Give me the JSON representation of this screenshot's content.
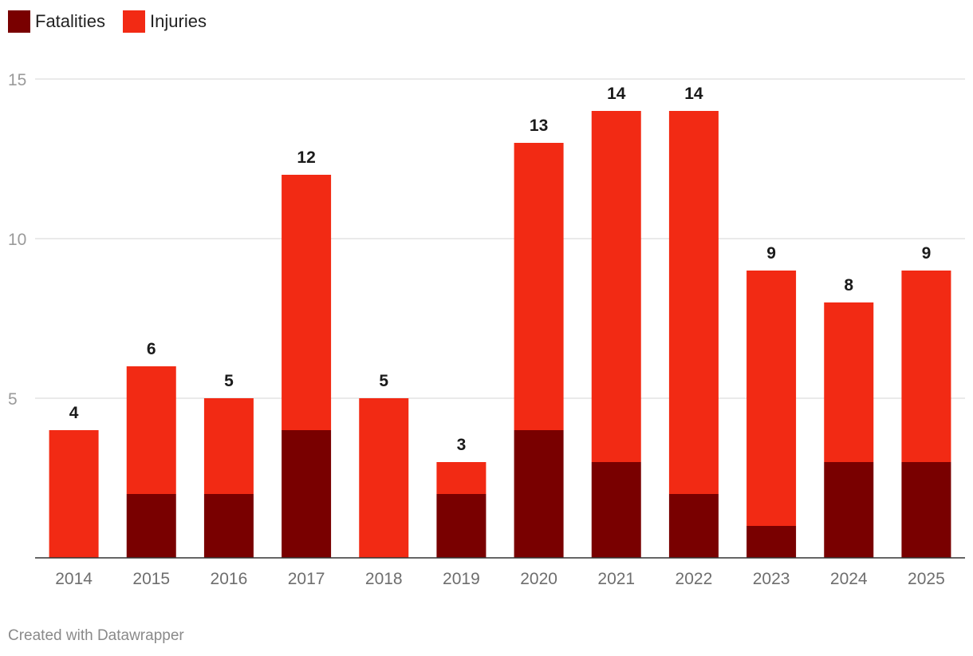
{
  "legend": [
    {
      "name": "Fatalities",
      "color": "#790000"
    },
    {
      "name": "Injuries",
      "color": "#f22a14"
    }
  ],
  "footer": "Created with Datawrapper",
  "chart_data": {
    "type": "bar",
    "stacked": true,
    "title": "",
    "xlabel": "",
    "ylabel": "",
    "ylim": [
      0,
      15
    ],
    "yticks": [
      5,
      10,
      15
    ],
    "grid": true,
    "legend_position": "top-left",
    "categories": [
      "2014",
      "2015",
      "2016",
      "2017",
      "2018",
      "2019",
      "2020",
      "2021",
      "2022",
      "2023",
      "2024",
      "2025"
    ],
    "series": [
      {
        "name": "Fatalities",
        "color": "#790000",
        "values": [
          0,
          2,
          2,
          4,
          0,
          2,
          4,
          3,
          2,
          1,
          3,
          3
        ]
      },
      {
        "name": "Injuries",
        "color": "#f22a14",
        "values": [
          4,
          4,
          3,
          8,
          5,
          1,
          9,
          11,
          12,
          8,
          5,
          6
        ]
      }
    ],
    "totals": [
      4,
      6,
      5,
      12,
      5,
      3,
      13,
      14,
      14,
      9,
      8,
      9
    ]
  }
}
